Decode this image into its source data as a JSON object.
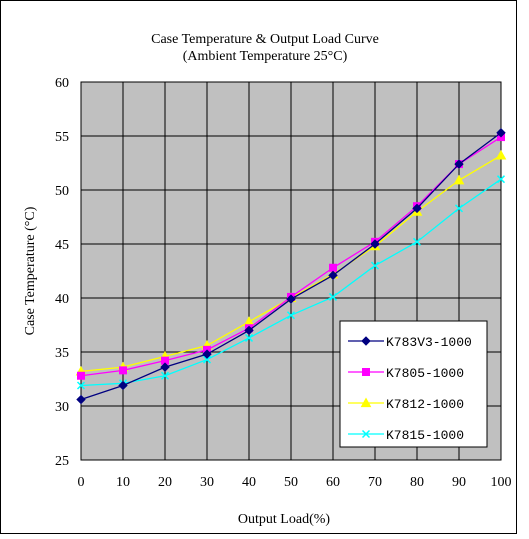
{
  "chart_data": {
    "type": "line",
    "title": "Case Temperature & Output Load Curve",
    "subtitle": "(Ambient Temperature 25°C)",
    "xlabel": "Output Load(%)",
    "ylabel": "Case Temperature (°C)",
    "x": [
      0,
      10,
      20,
      30,
      40,
      50,
      60,
      70,
      80,
      90,
      100
    ],
    "xlim": [
      0,
      100
    ],
    "ylim": [
      25,
      60
    ],
    "xticks": [
      "0",
      "10",
      "20",
      "30",
      "40",
      "50",
      "60",
      "70",
      "80",
      "90",
      "100"
    ],
    "yticks": [
      "25",
      "30",
      "35",
      "40",
      "45",
      "50",
      "55",
      "60"
    ],
    "grid": true,
    "legend_position": "bottom-right",
    "background_color": "#c0c0c0",
    "series": [
      {
        "name": "K783V3-1000",
        "color": "#000080",
        "marker": "diamond",
        "values": [
          30.6,
          31.9,
          33.6,
          34.8,
          37.0,
          39.9,
          42.1,
          45.0,
          48.3,
          52.4,
          55.3
        ]
      },
      {
        "name": "K7805-1000",
        "color": "#ff00ff",
        "marker": "square",
        "values": [
          32.8,
          33.3,
          34.2,
          35.2,
          37.2,
          40.1,
          42.8,
          45.2,
          48.5,
          52.4,
          54.9
        ]
      },
      {
        "name": "K7812-1000",
        "color": "#ffff00",
        "marker": "triangle",
        "values": [
          33.2,
          33.6,
          34.6,
          35.6,
          37.8,
          40.0,
          42.2,
          44.8,
          48.0,
          50.9,
          53.2
        ]
      },
      {
        "name": "K7815-1000",
        "color": "#00ffff",
        "marker": "x",
        "values": [
          31.9,
          32.1,
          32.8,
          34.3,
          36.3,
          38.4,
          40.1,
          43.0,
          45.2,
          48.3,
          51.0
        ]
      }
    ]
  }
}
